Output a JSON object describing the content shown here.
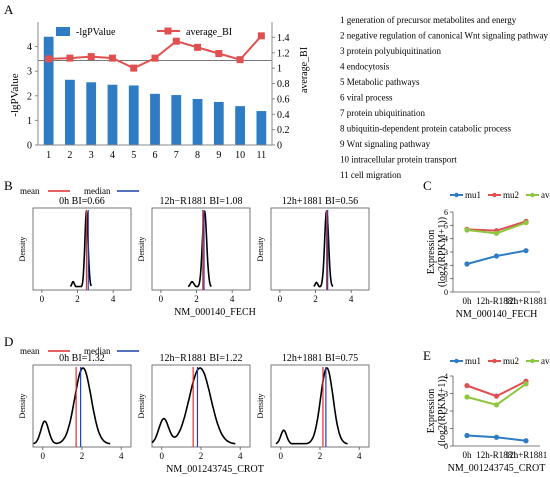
{
  "panels": {
    "a": "A",
    "b": "B",
    "c": "C",
    "d": "D",
    "e": "E"
  },
  "chart_data": [
    {
      "id": "panel-a",
      "type": "bar",
      "categories": [
        "1",
        "2",
        "3",
        "4",
        "5",
        "6",
        "7",
        "8",
        "9",
        "10",
        "11"
      ],
      "series": [
        {
          "name": "-lgPValue",
          "type": "bar",
          "axis": "left",
          "color": "#2e7dc4",
          "values": [
            4.4,
            2.65,
            2.55,
            2.45,
            2.42,
            2.08,
            2.03,
            1.87,
            1.75,
            1.58,
            1.38
          ]
        },
        {
          "name": "average_BI",
          "type": "line",
          "axis": "right",
          "color": "#e05050",
          "values": [
            1.12,
            1.13,
            1.15,
            1.13,
            1.0,
            1.13,
            1.35,
            1.27,
            1.19,
            1.11,
            1.42
          ]
        }
      ],
      "reference_line": 1.1,
      "ylabel": "-lgPValue",
      "y2label": "average_BI",
      "ylim": [
        0,
        5
      ],
      "yticks": [
        "0",
        "1",
        "2",
        "3",
        "4"
      ],
      "y2lim": [
        0,
        1.6
      ],
      "y2ticks": [
        "0",
        "0.2",
        "0.4",
        "0.6",
        "0.8",
        "1",
        "1.2",
        "1.4"
      ],
      "terms": [
        "1 generation of precursor metabolites and energy",
        "2 negative regulation of canonical Wnt signaling pathway",
        "3 protein polyubiquitination",
        "4 endocytosis",
        "5 Metabolic pathways",
        "6 viral process",
        "7 protein ubiquitination",
        "8 ubiquitin-dependent protein catabolic process",
        "9 Wnt signaling pathway",
        "10 intracellular protein transport",
        "11 cell migration"
      ]
    },
    {
      "id": "panel-b",
      "type": "line",
      "legend": [
        {
          "name": "mean",
          "color": "#e03030"
        },
        {
          "name": "median",
          "color": "#2040b0"
        }
      ],
      "xlabel": "NM_000140_FECH",
      "ylabel": "Density",
      "xlim": [
        -0.5,
        5
      ],
      "xticks": [
        0,
        2,
        4
      ],
      "subplots": [
        {
          "title": "0h BI=0.66",
          "mean": 2.5,
          "median": 2.6,
          "peaks": [
            {
              "c": 1.75,
              "s": 0.07,
              "h": 0.07
            },
            {
              "c": 2.5,
              "s": 0.09,
              "h": 1.0
            }
          ]
        },
        {
          "title": "12h−R1881 BI=1.08",
          "mean": 2.35,
          "median": 2.42,
          "peaks": [
            {
              "c": 1.75,
              "s": 0.1,
              "h": 0.07
            },
            {
              "c": 2.45,
              "s": 0.12,
              "h": 1.0
            }
          ]
        },
        {
          "title": "12h+1881 BI=0.56",
          "mean": 2.62,
          "median": 2.68,
          "peaks": [
            {
              "c": 2.05,
              "s": 0.07,
              "h": 0.06
            },
            {
              "c": 2.62,
              "s": 0.11,
              "h": 1.0
            }
          ]
        }
      ]
    },
    {
      "id": "panel-c",
      "type": "line",
      "categories": [
        "0h",
        "12h-R1881",
        "12h+R1881"
      ],
      "series": [
        {
          "name": "mu1",
          "color": "#2e7dc4",
          "values": [
            2.1,
            2.7,
            3.1
          ]
        },
        {
          "name": "mu2",
          "color": "#e05050",
          "values": [
            4.7,
            4.6,
            5.3
          ]
        },
        {
          "name": "average",
          "color": "#8ec63f",
          "values": [
            4.65,
            4.4,
            5.2
          ]
        }
      ],
      "xlabel": "NM_000140_FECH",
      "ylabel": "Expression",
      "ylabel2": "(log2(RPKM+1))",
      "ylim": [
        0,
        6
      ],
      "yticks": [
        "0",
        "1",
        "2",
        "3",
        "4",
        "5",
        "6"
      ]
    },
    {
      "id": "panel-d",
      "type": "line",
      "legend": [
        {
          "name": "mean",
          "color": "#e03030"
        },
        {
          "name": "median",
          "color": "#2040b0"
        }
      ],
      "xlabel": "NM_001243745_CROT",
      "ylabel": "Density",
      "xlim": [
        -0.5,
        4.5
      ],
      "xticks": [
        0,
        2,
        4
      ],
      "subplots": [
        {
          "title": "0h BI=1.32",
          "mean": 1.7,
          "median": 1.93,
          "peaks": [
            {
              "c": 0.1,
              "s": 0.2,
              "h": 0.3
            },
            {
              "c": 2.05,
              "s": 0.42,
              "h": 1.0
            }
          ]
        },
        {
          "title": "12h−R1881 BI=1.22",
          "mean": 1.6,
          "median": 1.82,
          "peaks": [
            {
              "c": 0.1,
              "s": 0.25,
              "h": 0.33
            },
            {
              "c": 1.95,
              "s": 0.55,
              "h": 1.0
            }
          ]
        },
        {
          "title": "12h+1881 BI=0.75",
          "mean": 2.15,
          "median": 2.3,
          "peaks": [
            {
              "c": 0.15,
              "s": 0.15,
              "h": 0.18
            },
            {
              "c": 2.35,
              "s": 0.32,
              "h": 1.0
            }
          ]
        }
      ]
    },
    {
      "id": "panel-e",
      "type": "line",
      "categories": [
        "0h",
        "12h-R1881",
        "12h+R1881"
      ],
      "series": [
        {
          "name": "mu1",
          "color": "#2e7dc4",
          "values": [
            0.6,
            0.5,
            0.3
          ]
        },
        {
          "name": "mu2",
          "color": "#e05050",
          "values": [
            3.45,
            2.85,
            3.7
          ]
        },
        {
          "name": "average",
          "color": "#8ec63f",
          "values": [
            2.8,
            2.35,
            3.55
          ]
        }
      ],
      "xlabel": "NM_001243745_CROT",
      "ylabel": "Expression",
      "ylabel2": "(log2(RPKM+1))",
      "ylim": [
        0,
        4
      ],
      "yticks": [
        "0",
        "1",
        "2",
        "3",
        "4"
      ]
    }
  ]
}
